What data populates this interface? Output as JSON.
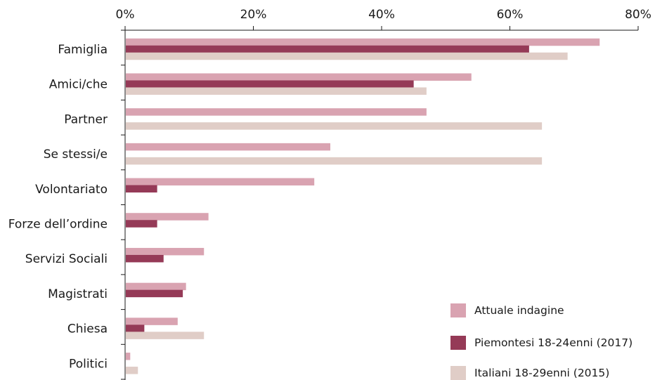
{
  "chart_data": {
    "type": "bar",
    "orientation": "horizontal",
    "categories": [
      "Famiglia",
      "Amici/che",
      "Partner",
      "Se stessi/e",
      "Volontariato",
      "Forze dell’ordine",
      "Servizi Sociali",
      "Magistrati",
      "Chiesa",
      "Politici"
    ],
    "series": [
      {
        "name": "Attuale indagine",
        "color": "#d9a3b1",
        "values": [
          74,
          54,
          47,
          32,
          29.5,
          13,
          12.3,
          9.5,
          8.2,
          0.8
        ]
      },
      {
        "name": "Piemontesi 18-24enni (2017)",
        "color": "#953a57",
        "values": [
          63,
          45,
          null,
          null,
          5,
          5,
          6,
          9,
          3,
          null
        ]
      },
      {
        "name": "Italiani 18-29enni (2015)",
        "color": "#e0cdc7",
        "values": [
          69,
          47,
          65,
          65,
          null,
          null,
          null,
          null,
          12.3,
          2
        ]
      }
    ],
    "xlim": [
      0,
      80
    ],
    "xticks": [
      0,
      20,
      40,
      60,
      80
    ],
    "xtick_labels": [
      "0%",
      "20%",
      "40%",
      "60%",
      "80%"
    ],
    "legend_position": "bottom-right",
    "grid": false
  }
}
